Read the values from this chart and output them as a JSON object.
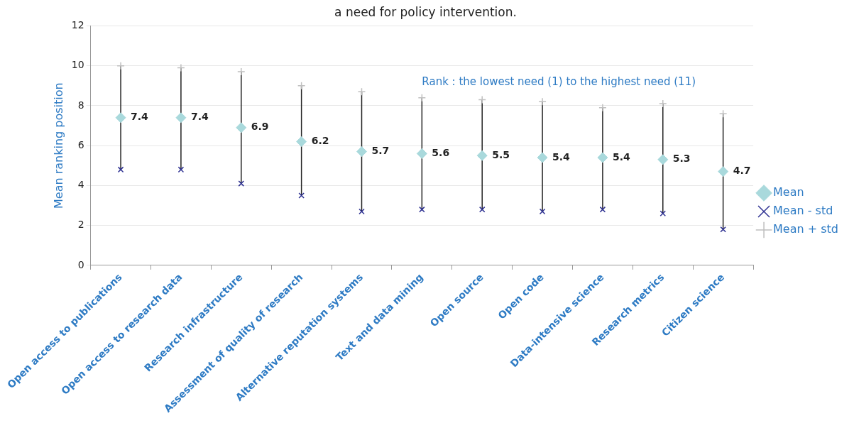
{
  "chart_data": {
    "type": "scatter",
    "title": "a need for policy intervention.",
    "ylabel": "Mean ranking position",
    "categories": [
      "Open access to publications",
      "Open access to research data",
      "Research infrastructure",
      "Assessment of quality of research",
      "Alternative reputation systems",
      "Text and data mining",
      "Open source",
      "Open code",
      "Data-intensive science",
      "Research metrics",
      "Citizen science"
    ],
    "series": [
      {
        "name": "Mean",
        "color": "#a9d9dc",
        "marker": "diamond",
        "values": [
          7.4,
          7.4,
          6.9,
          6.2,
          5.7,
          5.6,
          5.5,
          5.4,
          5.4,
          5.3,
          4.7
        ],
        "value_labels": [
          "7.4",
          "7.4",
          "6.9",
          "6.2",
          "5.7",
          "5.6",
          "5.5",
          "5.4",
          "5.4",
          "5.3",
          "4.7"
        ]
      },
      {
        "name": "Mean - std",
        "color": "#2e3192",
        "marker": "cross",
        "values": [
          4.8,
          4.8,
          4.1,
          3.5,
          2.7,
          2.8,
          2.8,
          2.7,
          2.8,
          2.6,
          1.8
        ]
      },
      {
        "name": "Mean + std",
        "color": "#bfbfbf",
        "marker": "cross",
        "values": [
          10.0,
          9.9,
          9.7,
          9.0,
          8.7,
          8.4,
          8.3,
          8.2,
          7.9,
          8.1,
          7.6
        ]
      }
    ],
    "ylim": [
      0,
      12
    ],
    "yticks": [
      0,
      2,
      4,
      6,
      8,
      10,
      12
    ],
    "grid": "y",
    "legend": "right",
    "annotations": [
      "Rank : the lowest need (1) to the highest need (11)"
    ]
  }
}
